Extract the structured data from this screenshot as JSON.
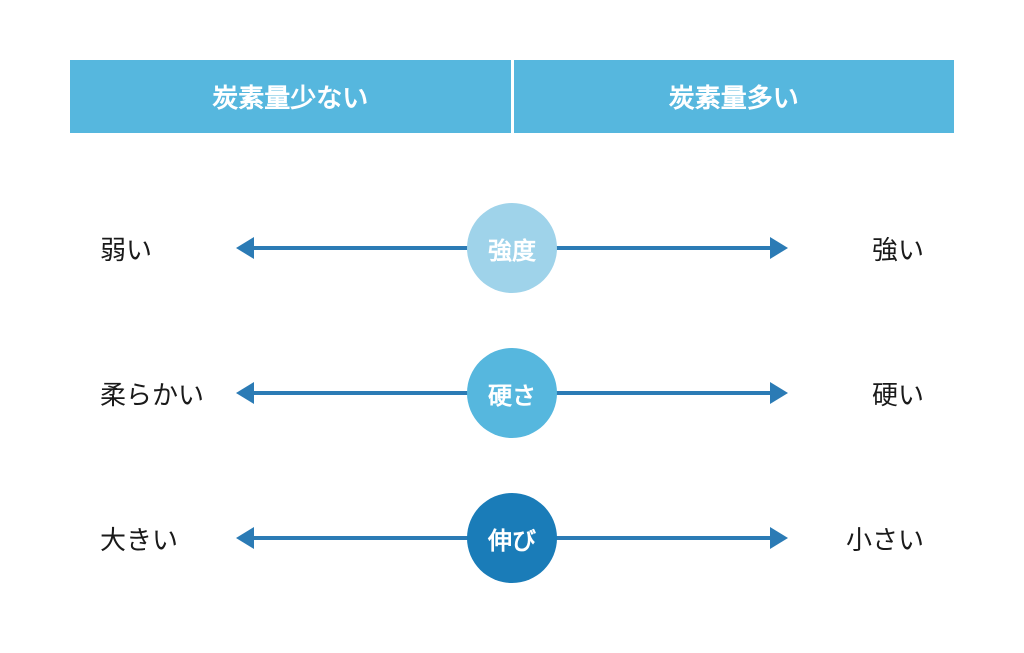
{
  "header": {
    "left": "炭素量少ない",
    "right": "炭素量多い",
    "bg_color": "#56b7de",
    "text_color": "#ffffff",
    "fontsize": 26
  },
  "arrow_color": "#2b7bb5",
  "text_color": "#1a1a1a",
  "label_fontsize": 26,
  "badge_fontsize": 24,
  "rows": [
    {
      "left_label": "弱い",
      "center_label": "強度",
      "right_label": "強い",
      "badge_color": "#9fd3ea"
    },
    {
      "left_label": "柔らかい",
      "center_label": "硬さ",
      "right_label": "硬い",
      "badge_color": "#56b7de"
    },
    {
      "left_label": "大きい",
      "center_label": "伸び",
      "right_label": "小さい",
      "badge_color": "#1a7cb8"
    }
  ]
}
